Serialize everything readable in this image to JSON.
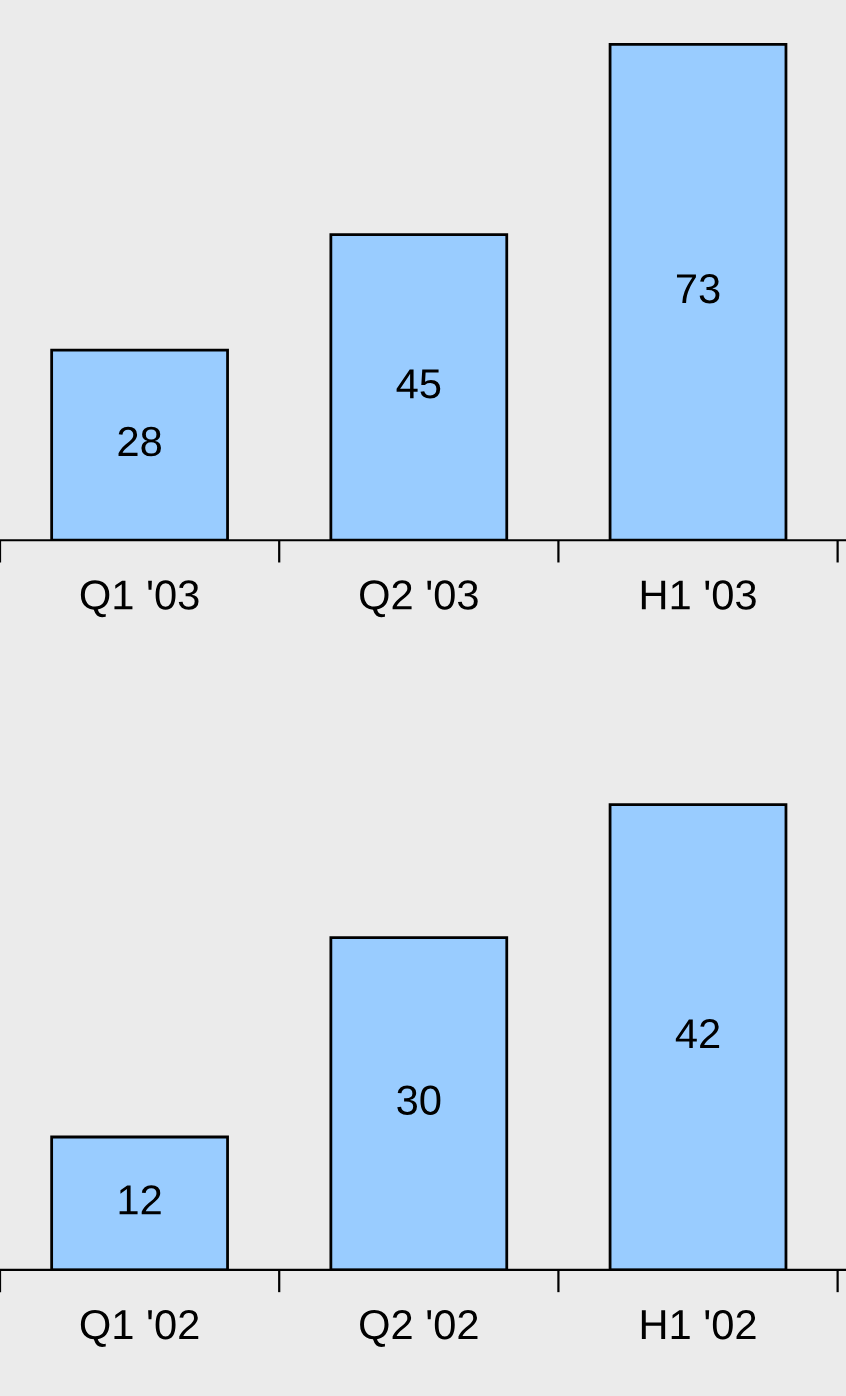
{
  "chart_data": [
    {
      "type": "bar",
      "categories": [
        "Q1 '03",
        "Q2 '03",
        "H1 '03"
      ],
      "values": [
        28,
        45,
        73
      ],
      "color": "#99ccff",
      "data_labels": true,
      "tick_labels": "x",
      "grid": false,
      "legend": false
    },
    {
      "type": "bar",
      "categories": [
        "Q1 '02",
        "Q2 '02",
        "H1 '02"
      ],
      "values": [
        12,
        30,
        42
      ],
      "color": "#99ccff",
      "data_labels": true,
      "tick_labels": "x",
      "grid": false,
      "legend": false
    }
  ]
}
